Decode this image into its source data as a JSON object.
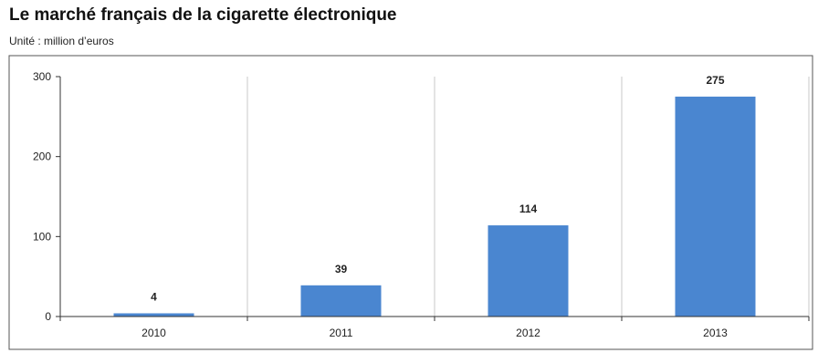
{
  "chart_data": {
    "type": "bar",
    "title": "Le marché français de la cigarette électronique",
    "subtitle": "Unité : million d’euros",
    "categories": [
      "2010",
      "2011",
      "2012",
      "2013"
    ],
    "values": [
      4,
      39,
      114,
      275
    ],
    "data_labels": [
      "4",
      "39",
      "114",
      "275"
    ],
    "yticks": [
      0,
      100,
      200,
      300
    ],
    "ylim": [
      0,
      300
    ],
    "xlabel": "",
    "ylabel": "",
    "grid": "vertical gridlines between categories",
    "bar_color": "#4a86d0"
  }
}
